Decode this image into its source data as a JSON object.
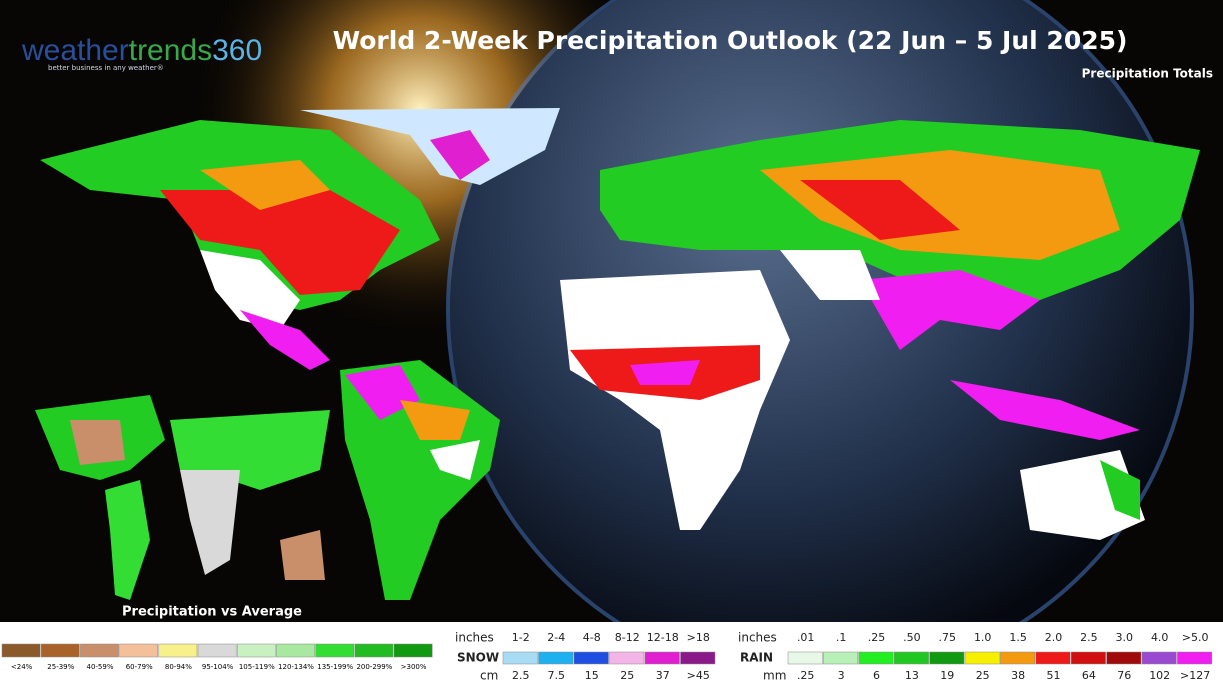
{
  "logo": {
    "parts": [
      "weather",
      "trends",
      "360"
    ],
    "tagline": "better business in any weather®"
  },
  "title": "World 2-Week Precipitation Outlook (22 Jun – 5 Jul 2025)",
  "subtitle": "Precipitation Totals",
  "inset_title": "Precipitation vs Average",
  "percent_legend": {
    "labels": [
      "<24%",
      "25-39%",
      "40-59%",
      "60-79%",
      "80-94%",
      "95-104%",
      "105-119%",
      "120-134%",
      "135-199%",
      "200-299%",
      ">300%"
    ],
    "colors": [
      "#8a5a2b",
      "#a8622a",
      "#c98f6a",
      "#f3c09a",
      "#f8f08a",
      "#d9d9d9",
      "#c8f0c0",
      "#a8e8a0",
      "#33dd33",
      "#22bb22",
      "#119911"
    ]
  },
  "snow_legend": {
    "name": "SNOW",
    "inches_label": "inches",
    "cm_label": "cm",
    "inches": [
      "1-2",
      "2-4",
      "4-8",
      "8-12",
      "12-18",
      ">18"
    ],
    "cm": [
      "2.5",
      "7.5",
      "15",
      "25",
      "37",
      ">45"
    ],
    "colors": [
      "#a8dcf5",
      "#1fb0f0",
      "#1f4fe0",
      "#f3b5e8",
      "#e020d0",
      "#8a1a8a"
    ]
  },
  "rain_legend": {
    "name": "RAIN",
    "inches_label": "inches",
    "mm_label": "mm",
    "inches": [
      ".01",
      ".1",
      ".25",
      ".50",
      ".75",
      "1.0",
      "1.5",
      "2.0",
      "2.5",
      "3.0",
      "4.0",
      ">5.0"
    ],
    "mm": [
      ".25",
      "3",
      "6",
      "13",
      "19",
      "25",
      "38",
      "51",
      "64",
      "76",
      "102",
      ">127"
    ],
    "colors": [
      "#e8f8e8",
      "#b8f0b8",
      "#22ee22",
      "#22c822",
      "#119a11",
      "#f6f000",
      "#f39a10",
      "#ee1a1a",
      "#d01010",
      "#a00a0a",
      "#9a4ad0",
      "#f01ef0"
    ]
  }
}
